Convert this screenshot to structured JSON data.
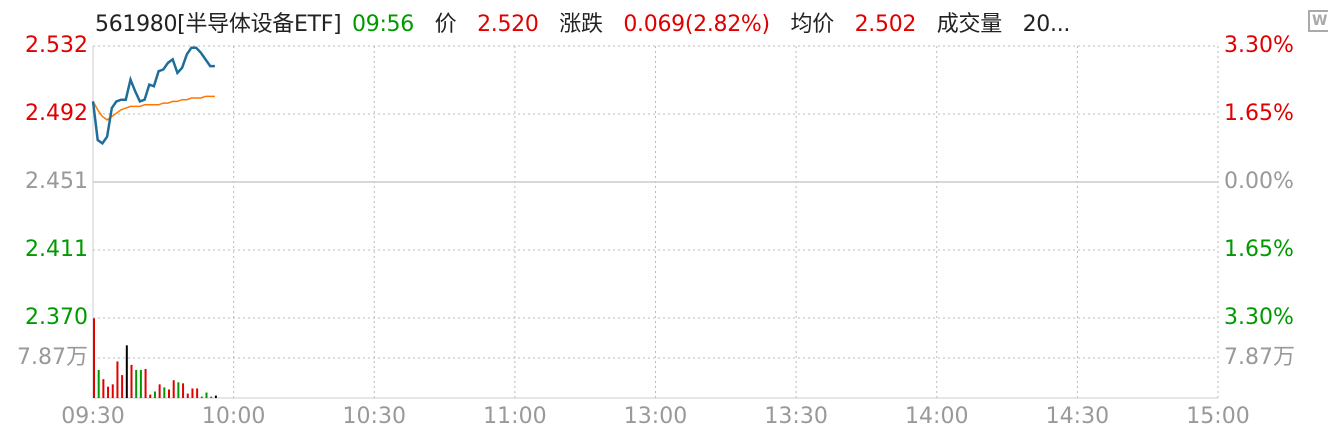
{
  "header": {
    "code_name": "561980[半导体设备ETF]",
    "time": "09:56",
    "price_label": "价",
    "price": "2.520",
    "change_label": "涨跌",
    "change": "0.069(2.82%)",
    "avg_label": "均价",
    "avg": "2.502",
    "volume_label": "成交量",
    "volume": "20..."
  },
  "icon": "monitor-w-icon",
  "colors": {
    "up": "#e00000",
    "down": "#009900",
    "flat": "#000000",
    "price_line": "#1f6e99",
    "avg_line": "#ff7700",
    "grid": "#bbbbbb"
  },
  "chart_data": {
    "type": "line",
    "ylim": [
      2.37,
      2.532
    ],
    "prev_close": 2.451,
    "y_ticks_left": [
      {
        "v": "2.532",
        "c": "up"
      },
      {
        "v": "2.492",
        "c": "up"
      },
      {
        "v": "2.451",
        "c": "flat_gray"
      },
      {
        "v": "2.411",
        "c": "down"
      },
      {
        "v": "2.370",
        "c": "down"
      }
    ],
    "y_ticks_right": [
      {
        "v": "3.30%",
        "c": "up"
      },
      {
        "v": "1.65%",
        "c": "up"
      },
      {
        "v": "0.00%",
        "c": "flat_gray"
      },
      {
        "v": "1.65%",
        "c": "down"
      },
      {
        "v": "3.30%",
        "c": "down"
      }
    ],
    "volume_tick": "7.87万",
    "volume_tick_value": 7.87,
    "x_ticks": [
      "09:30",
      "10:00",
      "10:30",
      "11:00",
      "13:00",
      "13:30",
      "14:00",
      "14:30",
      "15:00"
    ],
    "time": [
      "09:30",
      "09:31",
      "09:32",
      "09:33",
      "09:34",
      "09:35",
      "09:36",
      "09:37",
      "09:38",
      "09:39",
      "09:40",
      "09:41",
      "09:42",
      "09:43",
      "09:44",
      "09:45",
      "09:46",
      "09:47",
      "09:48",
      "09:49",
      "09:50",
      "09:51",
      "09:52",
      "09:53",
      "09:54",
      "09:55",
      "09:56"
    ],
    "price": [
      2.499,
      2.476,
      2.474,
      2.478,
      2.495,
      2.499,
      2.5,
      2.5,
      2.512,
      2.505,
      2.499,
      2.5,
      2.509,
      2.508,
      2.517,
      2.518,
      2.522,
      2.524,
      2.516,
      2.519,
      2.527,
      2.531,
      2.531,
      2.528,
      2.524,
      2.52,
      2.52
    ],
    "avg_price": [
      2.499,
      2.494,
      2.49,
      2.488,
      2.49,
      2.492,
      2.494,
      2.495,
      2.496,
      2.496,
      2.496,
      2.497,
      2.497,
      2.497,
      2.497,
      2.498,
      2.498,
      2.499,
      2.499,
      2.5,
      2.5,
      2.501,
      2.501,
      2.501,
      2.502,
      2.502,
      2.502
    ],
    "volume_wan": [
      15.67,
      5.52,
      3.7,
      2.22,
      2.69,
      7.2,
      4.51,
      10.36,
      6.52,
      5.52,
      5.52,
      5.72,
      0.67,
      1.28,
      2.69,
      2.09,
      1.68,
      3.5,
      3.09,
      2.89,
      0.87,
      1.88,
      1.88,
      0.27,
      1.08,
      0.27,
      0.47
    ],
    "volume_dir": [
      "up",
      "down",
      "up",
      "up",
      "up",
      "up",
      "up",
      "flat",
      "up",
      "down",
      "down",
      "up",
      "up",
      "down",
      "up",
      "down",
      "up",
      "up",
      "down",
      "up",
      "up",
      "up",
      "up",
      "down",
      "down",
      "down",
      "flat"
    ]
  }
}
